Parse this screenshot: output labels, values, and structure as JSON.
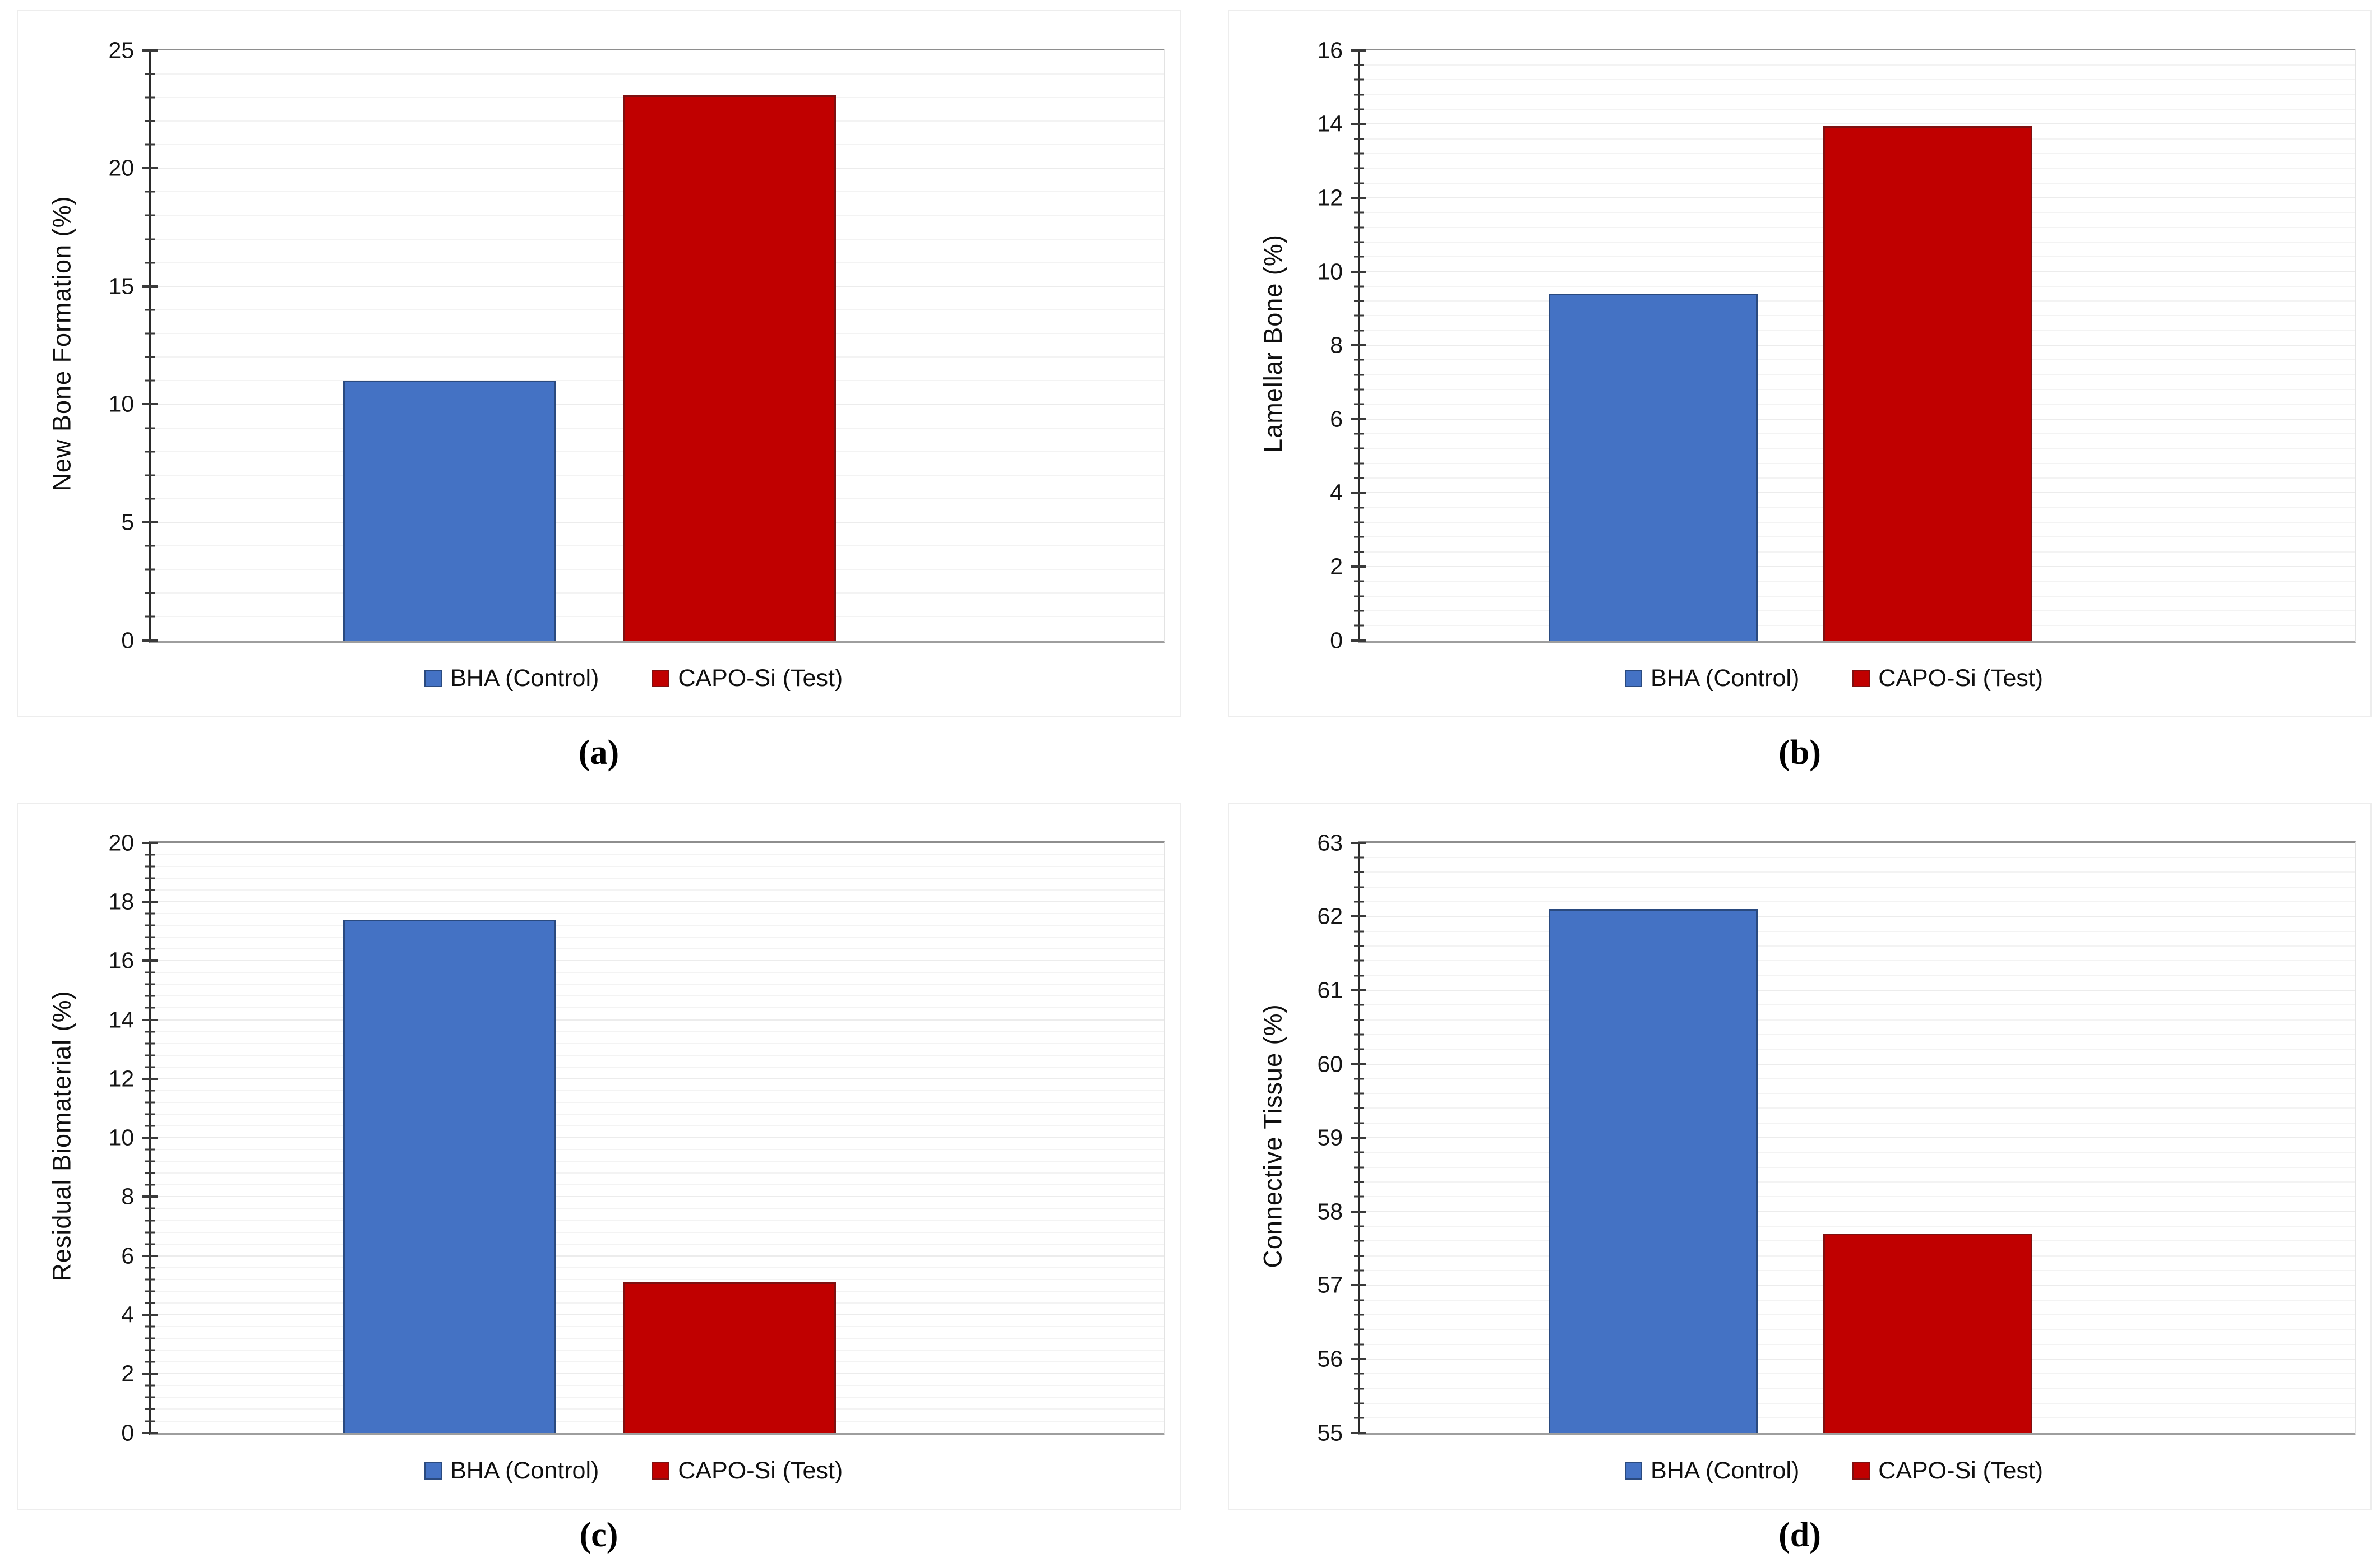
{
  "figure_type": "2x2 panel bar chart figure (histomorphometry results)",
  "colors": {
    "bha_fill": "#4472C4",
    "bha_border": "#2A4A7F",
    "capo_fill": "#C00000",
    "capo_border": "#7F1010",
    "gridline": "#F3F3F3",
    "axis_line": "#2A2A2A",
    "baseline": "#9E9E9E"
  },
  "chart_data": [
    {
      "type": "bar",
      "panel": "(a)",
      "title": "",
      "xlabel": "",
      "ylabel": "New Bone Formation (%)",
      "categories": [
        "BHA (Control)",
        "CAPO-Si (Test)"
      ],
      "values": [
        11.0,
        23.1
      ],
      "series_colors": [
        "#4472C4",
        "#C00000"
      ],
      "series_borders": [
        "#2A4A7F",
        "#7F1010"
      ],
      "ylim": [
        0,
        25
      ],
      "ytick_major": 5,
      "ytick_minor": 1,
      "grid": true,
      "legend_position": "bottom"
    },
    {
      "type": "bar",
      "panel": "(b)",
      "title": "",
      "xlabel": "",
      "ylabel": "Lamellar Bone (%)",
      "categories": [
        "BHA (Control)",
        "CAPO-Si (Test)"
      ],
      "values": [
        9.4,
        13.95
      ],
      "series_colors": [
        "#4472C4",
        "#C00000"
      ],
      "series_borders": [
        "#2A4A7F",
        "#7F1010"
      ],
      "ylim": [
        0,
        16
      ],
      "ytick_major": 2,
      "ytick_minor": 0.4,
      "grid": true,
      "legend_position": "bottom"
    },
    {
      "type": "bar",
      "panel": "(c)",
      "title": "",
      "xlabel": "",
      "ylabel": "Residual Biomaterial (%)",
      "categories": [
        "BHA (Control)",
        "CAPO-Si (Test)"
      ],
      "values": [
        17.4,
        5.1
      ],
      "series_colors": [
        "#4472C4",
        "#C00000"
      ],
      "series_borders": [
        "#2A4A7F",
        "#7F1010"
      ],
      "ylim": [
        0,
        20
      ],
      "ytick_major": 2,
      "ytick_minor": 0.4,
      "grid": true,
      "legend_position": "bottom"
    },
    {
      "type": "bar",
      "panel": "(d)",
      "title": "",
      "xlabel": "",
      "ylabel": "Connective Tissue (%)",
      "categories": [
        "BHA (Control)",
        "CAPO-Si (Test)"
      ],
      "values": [
        62.1,
        57.7
      ],
      "series_colors": [
        "#4472C4",
        "#C00000"
      ],
      "series_borders": [
        "#2A4A7F",
        "#7F1010"
      ],
      "ylim": [
        55,
        63
      ],
      "ytick_major": 1,
      "ytick_minor": 0.2,
      "grid": true,
      "legend_position": "bottom"
    }
  ]
}
